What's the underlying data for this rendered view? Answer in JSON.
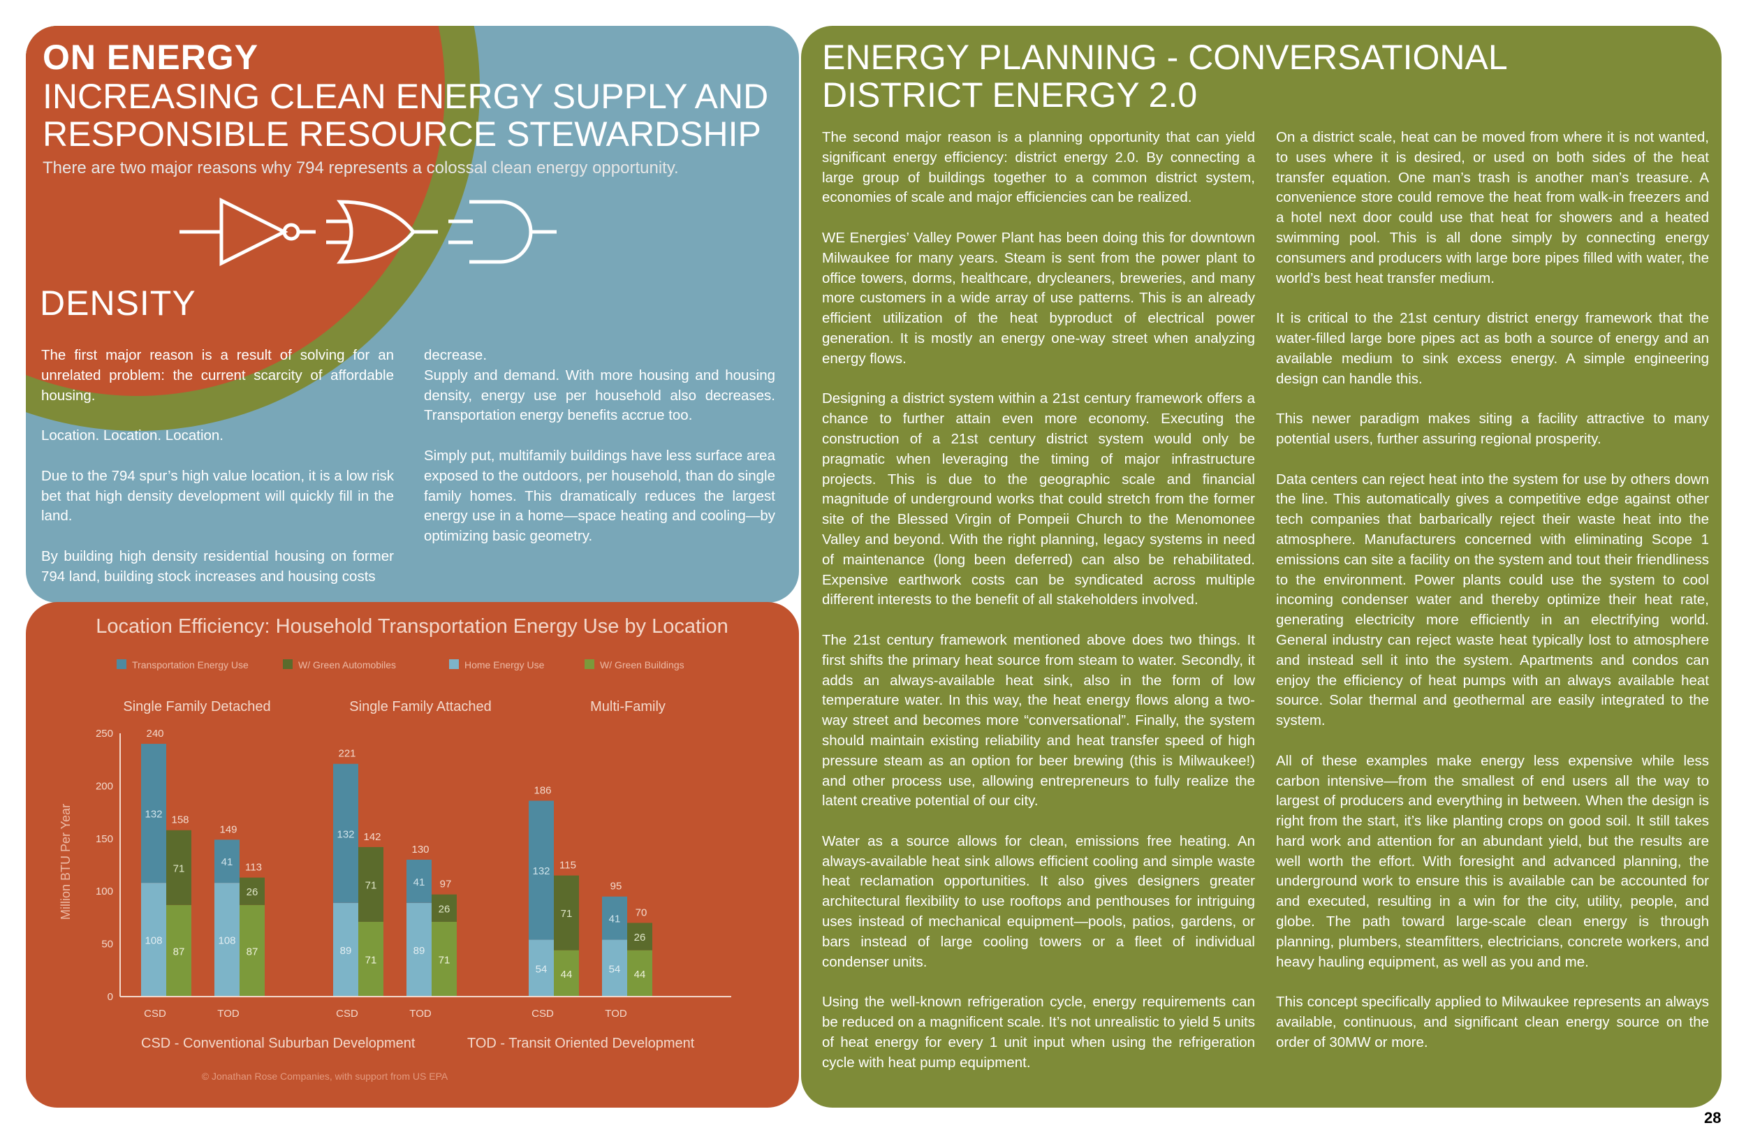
{
  "left_panel": {
    "kicker": "ON ENERGY",
    "headline": "INCREASING CLEAN ENERGY SUPPLY AND RESPONSIBLE RESOURCE STEWARDSHIP",
    "intro": "There are two major reasons why 794 represents a colossal clean energy opportunity.",
    "section_heading": "DENSITY",
    "col1": "The first major reason is a result of solving for an unrelated problem: the current scarcity of affordable housing.\n\nLocation.  Location.  Location.\n\nDue to the 794 spur’s high value location, it is a low risk bet that high density development will quickly fill in the land.\n\nBy building high density residential housing on former 794 land, building stock increases and housing costs",
    "col2": "decrease.\nSupply and demand.  With more housing and housing density, energy use per household also decreases.  Transportation energy benefits accrue too.\n\nSimply put, multifamily buildings have less surface area exposed to the outdoors, per household, than do single family homes.  This dramatically reduces the largest energy use in a home—space heating and cooling—by optimizing basic geometry."
  },
  "colors": {
    "orange": "#c1532e",
    "olive": "#7e8b38",
    "blue": "#79a7b8",
    "transport": "#4e8aa0",
    "green_auto": "#5b6b2c",
    "home": "#7db4c8",
    "green_buildings": "#7c9a3b"
  },
  "icons": [
    "not-gate-icon",
    "or-gate-icon",
    "and-gate-icon"
  ],
  "chart_data": {
    "type": "bar",
    "title": "Location Efficiency: Household Transportation Energy Use by Location",
    "ylabel": "Million BTU Per Year",
    "ylim": [
      0,
      250
    ],
    "yticks": [
      "250",
      "200",
      "150",
      "100",
      "50",
      "0"
    ],
    "legend": [
      "Transportation Energy Use",
      "W/ Green Automobiles",
      "Home Energy Use",
      "W/ Green Buildings"
    ],
    "legend_position": "top",
    "groups": [
      "Single Family Detached",
      "Single Family Attached",
      "Multi-Family"
    ],
    "categories": [
      "CSD",
      "TOD",
      "CSD",
      "TOD",
      "CSD",
      "TOD"
    ],
    "series": [
      {
        "name": "Home Energy Use",
        "values": [
          108,
          108,
          89,
          89,
          54,
          54
        ]
      },
      {
        "name": "Transportation Energy Use",
        "values": [
          132,
          41,
          132,
          41,
          132,
          41
        ]
      },
      {
        "name": "W/ Green Buildings",
        "values": [
          87,
          87,
          71,
          71,
          44,
          44
        ]
      },
      {
        "name": "W/ Green Automobiles",
        "values": [
          71,
          26,
          71,
          26,
          71,
          26
        ]
      }
    ],
    "totals_base": [
      240,
      149,
      221,
      130,
      186,
      95
    ],
    "totals_green": [
      158,
      113,
      142,
      97,
      115,
      70
    ],
    "footnotes": [
      "CSD - Conventional Suburban Development",
      "TOD - Transit Oriented Development"
    ],
    "credit": "© Jonathan Rose Companies, with support from US EPA"
  },
  "right_panel": {
    "title": "ENERGY PLANNING - CONVERSATIONAL DISTRICT ENERGY 2.0",
    "col1": "The second major reason is a planning opportunity that can yield significant energy efficiency: district energy 2.0.  By connecting a large group of buildings together to a common district system, economies of scale and major efficiencies can be realized.\n\nWE Energies’ Valley Power Plant has been doing this for downtown Milwaukee for many years.  Steam is sent from the power plant to office towers, dorms, healthcare, drycleaners, breweries, and many more customers in a wide array of use patterns.  This is an already efficient utilization of the heat byproduct of electrical power generation.  It is mostly an energy one-way street when analyzing energy flows.\n\nDesigning a district system within a 21st century framework offers a chance to further attain even more economy.  Executing the construction of a 21st century district system would only be pragmatic when leveraging the timing of major infrastructure projects.  This is due to the geographic scale and financial magnitude of underground works that could stretch from the former site of the Blessed Virgin of Pompeii Church to the Menomonee Valley and beyond. With the right planning, legacy systems in need of maintenance (long been deferred) can also be rehabilitated.  Expensive earthwork costs can be syndicated across multiple different interests to the benefit of all stakeholders involved.\n\nThe 21st century framework mentioned above does two things.  It first shifts the primary heat source from steam to water.  Secondly, it adds an always-available heat sink, also in the form of low temperature water.  In this way, the heat energy flows along a two-way street and becomes more “conversational”.  Finally, the system should maintain existing reliability and heat transfer speed of high pressure steam as an option for beer brewing (this is Milwaukee!) and other process use, allowing entrepreneurs to fully realize the latent creative potential of our city.\n\nWater as a source allows for clean, emissions free heating.  An always-available heat sink allows efficient cooling and simple waste heat reclamation opportunities.  It also gives designers greater architectural flexibility to use rooftops and penthouses for intriguing uses instead of mechanical equipment—pools, patios, gardens, or bars instead of large cooling towers or a fleet of individual condenser units.\n\nUsing the well-known refrigeration cycle, energy requirements can be reduced on a magnificent scale.  It’s not unrealistic to yield 5 units of heat energy for every 1 unit input when using the refrigeration cycle with heat pump equipment.",
    "col2": "On a district scale, heat can be moved from where it is not wanted, to uses where it is desired, or used on both sides of the heat transfer equation.  One man’s trash is another man’s treasure.  A convenience store could remove the heat from walk-in freezers and a hotel next door could use that heat for showers and a heated swimming pool.  This is all done simply by connecting energy consumers and producers with large bore pipes filled with water, the world’s best heat transfer medium.\n\nIt is critical to the 21st century district energy framework that the water-filled large bore pipes act as both a source of energy and an available medium to sink excess energy.  A simple engineering design can handle this.\n\nThis newer paradigm makes siting a facility attractive to many potential users, further assuring regional prosperity.\n\nData centers can reject heat into the system for use by others down the line.  This automatically gives a competitive edge against other tech companies that barbarically reject their waste heat into the atmosphere.  Manufacturers concerned with eliminating Scope 1 emissions can site a facility on the system and tout their friendliness to the environment.  Power plants could use the system to cool incoming condenser water and thereby optimize their heat rate, generating electricity more efficiently in an electrifying world.  General industry can reject waste heat typically lost to atmosphere and instead sell it into the system.  Apartments and condos can enjoy the efficiency of heat pumps with an always available heat source.  Solar thermal and geothermal are easily integrated to the system.\n\nAll of these examples make energy less expensive while less carbon intensive—from the smallest of end users all the way to largest of producers and everything in between.  When the design is right from the start, it’s like planting crops on good soil.  It still takes hard work and attention for an abundant yield, but the results are well worth the effort.  With foresight and advanced planning, the underground work to ensure this is available can be accounted for and executed, resulting in a win for the city, utility, people, and globe.  The path toward large-scale clean energy is through planning, plumbers, steamfitters, electricians, concrete workers, and heavy hauling equipment, as well as you and me.\n\nThis concept specifically applied to Milwaukee represents an always available, continuous, and significant clean energy source on the order of 30MW or more."
  },
  "page_number": "28"
}
